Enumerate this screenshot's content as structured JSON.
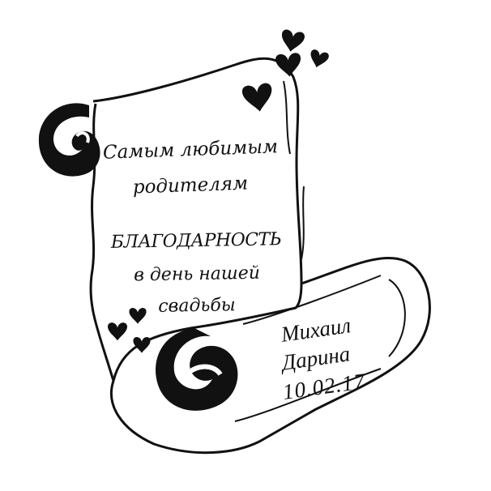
{
  "dedication": {
    "line1": "Самым любимым",
    "line2": "родителям"
  },
  "message": {
    "heading": "БЛАГОДАРНОСТЬ",
    "line1": "в день нашей",
    "line2": "свадьбы"
  },
  "signature": {
    "name1": "Михаил",
    "name2": "Дарина",
    "date": "10.02.17"
  },
  "colors": {
    "ink": "#111111",
    "paper": "#ffffff"
  }
}
